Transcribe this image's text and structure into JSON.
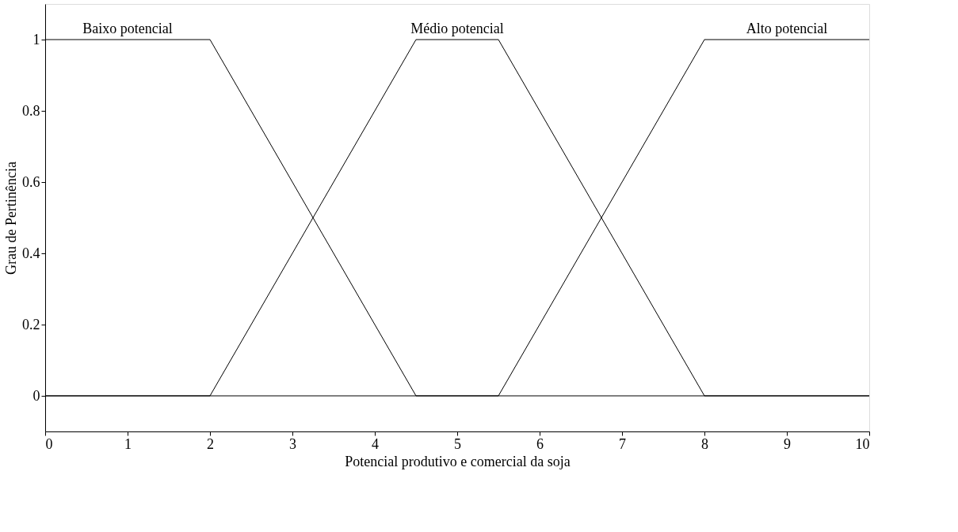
{
  "chart_data": {
    "type": "line",
    "xlabel": "Potencial produtivo e comercial da soja",
    "ylabel": "Grau de Pertinência",
    "xlim": [
      0,
      10
    ],
    "xticks": [
      0,
      1,
      2,
      3,
      4,
      5,
      6,
      7,
      8,
      9,
      10
    ],
    "ylim": [
      -0.1,
      1.1
    ],
    "yticks": [
      0,
      0.2,
      0.4,
      0.6,
      0.8,
      1
    ],
    "grid": false,
    "legend": false,
    "marker": "none",
    "line_style": "solid",
    "series": [
      {
        "name": "Baixo potencial",
        "color": "#000000",
        "x": [
          0,
          2,
          4.5,
          10
        ],
        "values": [
          1,
          1,
          0,
          0
        ]
      },
      {
        "name": "Médio potencial",
        "color": "#000000",
        "x": [
          0,
          2,
          4.5,
          5.5,
          8,
          10
        ],
        "values": [
          0,
          0,
          1,
          1,
          0,
          0
        ]
      },
      {
        "name": "Alto potencial",
        "color": "#000000",
        "x": [
          0,
          5.5,
          8,
          10
        ],
        "values": [
          0,
          0,
          1,
          1
        ]
      }
    ]
  }
}
